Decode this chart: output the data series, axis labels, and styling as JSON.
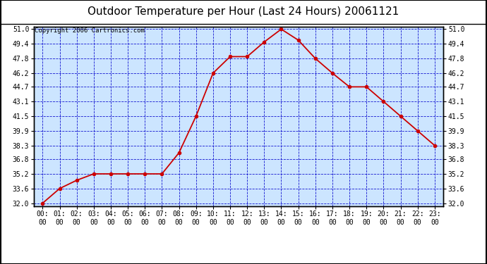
{
  "title": "Outdoor Temperature per Hour (Last 24 Hours) 20061121",
  "copyright_text": "Copyright 2006 Cartronics.com",
  "hours": [
    "00:00",
    "01:00",
    "02:00",
    "03:00",
    "04:00",
    "05:00",
    "06:00",
    "07:00",
    "08:00",
    "09:00",
    "10:00",
    "11:00",
    "12:00",
    "13:00",
    "14:00",
    "15:00",
    "16:00",
    "17:00",
    "18:00",
    "19:00",
    "20:00",
    "21:00",
    "22:00",
    "23:00"
  ],
  "temps": [
    32.0,
    33.6,
    34.5,
    35.2,
    35.2,
    35.2,
    35.2,
    35.2,
    37.5,
    41.5,
    46.2,
    48.0,
    48.0,
    49.6,
    51.0,
    49.8,
    47.8,
    46.2,
    44.7,
    44.7,
    43.1,
    41.5,
    39.9,
    38.3
  ],
  "ylim_min": 32.0,
  "ylim_max": 51.0,
  "yticks": [
    32.0,
    33.6,
    35.2,
    36.8,
    38.3,
    39.9,
    41.5,
    43.1,
    44.7,
    46.2,
    47.8,
    49.4,
    51.0
  ],
  "line_color": "#cc0000",
  "marker_color": "#cc0000",
  "bg_color": "#cce5ff",
  "grid_color": "#0000cc",
  "title_fontsize": 11,
  "copyright_fontsize": 6.5,
  "tick_fontsize": 7,
  "title_color": "#000000",
  "outer_bg": "#ffffff",
  "border_color": "#000000"
}
